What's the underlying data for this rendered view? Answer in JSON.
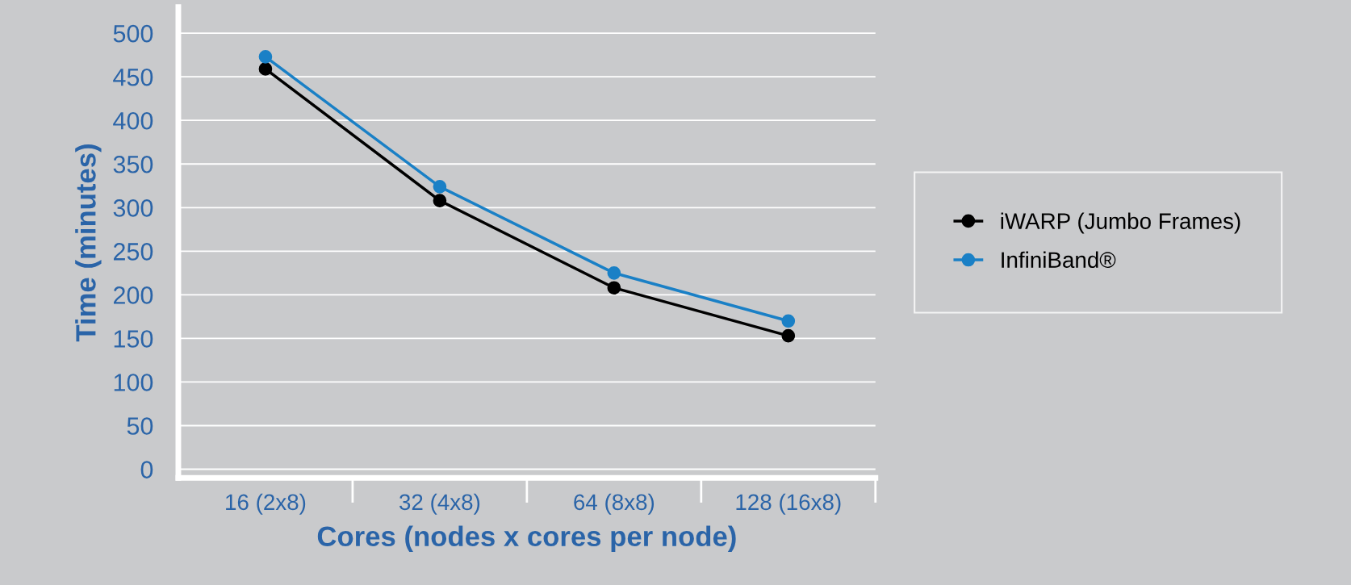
{
  "chart_data": {
    "type": "line",
    "xlabel": "Cores (nodes x cores per node)",
    "ylabel": "Time (minutes)",
    "categories": [
      "16 (2x8)",
      "32 (4x8)",
      "64 (8x8)",
      "128 (16x8)"
    ],
    "series": [
      {
        "name": "iWARP (Jumbo Frames)",
        "color": "#000000",
        "values": [
          459,
          308,
          208,
          153
        ]
      },
      {
        "name": "InfiniBand®",
        "color": "#1a80c6",
        "values": [
          473,
          324,
          225,
          170
        ]
      }
    ],
    "ylim": [
      -10,
      530
    ],
    "yticks": [
      0,
      50,
      100,
      150,
      200,
      250,
      300,
      350,
      400,
      450,
      500
    ],
    "grid": "y",
    "legend": "right",
    "marker": "circle",
    "line_style": "solid"
  }
}
